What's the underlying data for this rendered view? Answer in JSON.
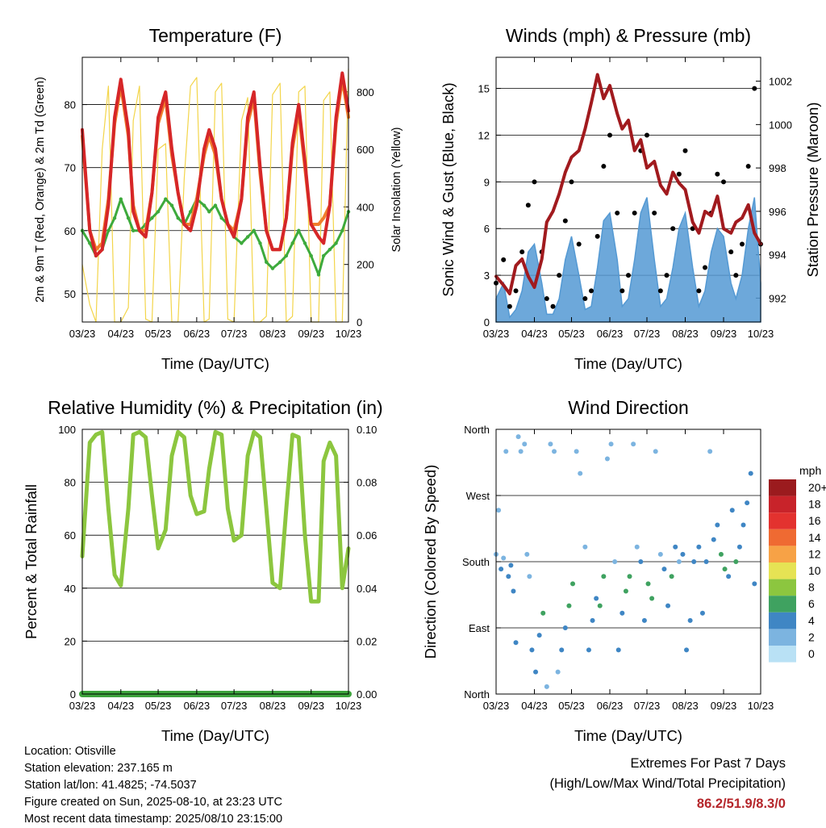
{
  "x_tick_labels": [
    "03/23",
    "04/23",
    "05/23",
    "06/23",
    "07/23",
    "08/23",
    "09/23",
    "10/23"
  ],
  "x_label": "Time (Day/UTC)",
  "colors": {
    "temp_red": "#d62628",
    "temp_orange": "#f07d2c",
    "dewpoint_green": "#3daa3c",
    "solar_yellow": "#f3d54a",
    "wind_blue": "#5499d3",
    "gust_black": "#000000",
    "pressure_maroon": "#a11a1e",
    "rh_green": "#8cc63f",
    "precip_green": "#3da33c",
    "extremes_red": "#b5262b"
  },
  "chart_data": [
    {
      "type": "line",
      "title": "Temperature (F)",
      "xlabel": "Time (Day/UTC)",
      "ylabel": "2m & 9m T (Red, Orange) & 2m Td (Green)",
      "ylabel_right": "Solar Insolation (Yellow)",
      "ylim": [
        45.5,
        87.5
      ],
      "y_ticks": [
        50,
        60,
        70,
        80
      ],
      "ylim_right": [
        0,
        920
      ],
      "y_ticks_right": [
        0,
        200,
        400,
        600,
        800
      ],
      "x": [
        "03/23",
        "03/29",
        "04/03",
        "04/08",
        "04/13",
        "04/18",
        "04/23",
        "04/29",
        "05/03",
        "05/08",
        "05/13",
        "05/18",
        "05/23",
        "05/29",
        "06/03",
        "06/08",
        "06/13",
        "06/18",
        "06/23",
        "06/29",
        "07/03",
        "07/08",
        "07/13",
        "07/18",
        "07/23",
        "07/29",
        "08/03",
        "08/08",
        "08/13",
        "08/18",
        "08/23",
        "08/29",
        "09/03",
        "09/08",
        "09/13",
        "09/18",
        "09/23",
        "09/29",
        "10/03",
        "10/08",
        "10/13",
        "10/18",
        "10/23"
      ],
      "series": [
        {
          "values": [
            76,
            60,
            56,
            57,
            64,
            78,
            84,
            76,
            63,
            60,
            59,
            66,
            78,
            82,
            73,
            66,
            61,
            60,
            64,
            73,
            76,
            73,
            65,
            61,
            59,
            65,
            78,
            82,
            70,
            60,
            57,
            57,
            62,
            74,
            80,
            71,
            61,
            59,
            58,
            64,
            78,
            85,
            79
          ]
        },
        {
          "values": [
            75,
            60,
            57,
            58,
            65,
            77,
            83,
            75,
            64,
            60,
            60,
            66,
            77,
            81,
            72,
            66,
            61,
            61,
            65,
            72,
            75,
            72,
            65,
            61,
            60,
            65,
            77,
            81,
            69,
            60,
            57,
            57,
            62,
            73,
            79,
            70,
            61,
            61,
            62,
            64,
            77,
            84,
            78
          ]
        },
        {
          "values": [
            60,
            58,
            56,
            57,
            60,
            62,
            65,
            62,
            60,
            60,
            61,
            62,
            63,
            65,
            64,
            62,
            61,
            63,
            65,
            64,
            63,
            64,
            62,
            61,
            59,
            58,
            59,
            60,
            58,
            55,
            54,
            55,
            56,
            58,
            60,
            58,
            56,
            53,
            56,
            57,
            58,
            60,
            63
          ]
        },
        {
          "values": [
            200,
            60,
            0,
            600,
            820,
            0,
            0,
            50,
            700,
            820,
            10,
            0,
            600,
            620,
            0,
            0,
            500,
            820,
            850,
            0,
            10,
            800,
            830,
            10,
            0,
            700,
            780,
            0,
            0,
            20,
            790,
            830,
            0,
            20,
            800,
            820,
            0,
            0,
            770,
            800,
            0,
            0,
            880
          ]
        }
      ]
    },
    {
      "type": "line",
      "title": "Winds (mph) & Pressure (mb)",
      "xlabel": "Time (Day/UTC)",
      "ylabel": "Sonic Wind & Gust (Blue, Black)",
      "ylabel_right": "Station Pressure (Maroon)",
      "ylim": [
        0,
        17
      ],
      "y_ticks": [
        0,
        3,
        6,
        9,
        12,
        15
      ],
      "ylim_right": [
        990.9,
        1003.1
      ],
      "y_ticks_right": [
        992,
        994,
        996,
        998,
        1000,
        1002
      ],
      "x": [
        "03/23",
        "03/29",
        "04/03",
        "04/08",
        "04/13",
        "04/18",
        "04/23",
        "04/29",
        "05/03",
        "05/08",
        "05/13",
        "05/18",
        "05/23",
        "05/29",
        "06/03",
        "06/08",
        "06/13",
        "06/18",
        "06/23",
        "06/29",
        "07/03",
        "07/08",
        "07/13",
        "07/18",
        "07/23",
        "07/29",
        "08/03",
        "08/08",
        "08/13",
        "08/18",
        "08/23",
        "08/29",
        "09/03",
        "09/08",
        "09/13",
        "09/18",
        "09/23",
        "09/29",
        "10/03",
        "10/08",
        "10/13",
        "10/18",
        "10/23"
      ],
      "series": [
        {
          "values": [
            1.5,
            2.5,
            0.3,
            0.8,
            2.0,
            4.5,
            5.0,
            2.5,
            0.5,
            0.5,
            1.5,
            4.0,
            5.5,
            3.0,
            0.8,
            1.0,
            3.5,
            6.5,
            7.0,
            4.0,
            1.0,
            1.5,
            4.0,
            7.0,
            8.0,
            4.0,
            1.0,
            1.5,
            3.5,
            6.0,
            7.0,
            3.5,
            1.0,
            2.0,
            4.5,
            6.0,
            5.5,
            2.5,
            1.5,
            3.0,
            6.0,
            8.0,
            2.5
          ]
        },
        {
          "values": [
            2.5,
            4.0,
            1.0,
            2.0,
            4.5,
            7.5,
            9.0,
            4.5,
            1.5,
            1.0,
            3.0,
            6.5,
            9.0,
            5.0,
            1.5,
            2.0,
            5.5,
            10.0,
            12.0,
            7.0,
            2.0,
            3.0,
            7.0,
            11.0,
            12.0,
            7.0,
            2.0,
            3.0,
            6.0,
            9.5,
            11.0,
            6.0,
            2.0,
            3.5,
            7.0,
            9.5,
            9.0,
            4.5,
            3.0,
            5.0,
            10.0,
            15.0,
            5.0
          ]
        },
        {
          "values": [
            993.0,
            992.6,
            992.2,
            993.5,
            993.8,
            993.0,
            992.5,
            993.8,
            995.5,
            996.0,
            996.8,
            997.8,
            998.5,
            998.8,
            999.8,
            1001.0,
            1002.3,
            1001.2,
            1001.8,
            1000.5,
            999.8,
            1000.2,
            998.8,
            999.3,
            998.0,
            998.3,
            997.2,
            996.8,
            997.8,
            997.3,
            997.0,
            995.5,
            995.0,
            996.0,
            995.8,
            996.7,
            995.2,
            995.0,
            995.5,
            995.7,
            996.3,
            995.0,
            994.5
          ]
        }
      ]
    },
    {
      "type": "line",
      "title": "Relative Humidity (%) & Precipitation (in)",
      "xlabel": "Time (Day/UTC)",
      "ylabel": "Percent & Total Rainfall",
      "ylim": [
        0,
        100
      ],
      "y_ticks": [
        0,
        20,
        40,
        60,
        80,
        100
      ],
      "ylim_right": [
        0,
        0.1
      ],
      "y_ticks_right": [
        "0.00",
        "0.02",
        "0.04",
        "0.06",
        "0.08",
        "0.10"
      ],
      "x": [
        "03/23",
        "03/29",
        "04/03",
        "04/08",
        "04/13",
        "04/18",
        "04/23",
        "04/29",
        "05/03",
        "05/08",
        "05/13",
        "05/18",
        "05/23",
        "05/29",
        "06/03",
        "06/08",
        "06/13",
        "06/18",
        "06/23",
        "06/29",
        "07/03",
        "07/08",
        "07/13",
        "07/18",
        "07/23",
        "07/29",
        "08/03",
        "08/08",
        "08/13",
        "08/18",
        "08/23",
        "08/29",
        "09/03",
        "09/08",
        "09/13",
        "09/18",
        "09/23",
        "09/29",
        "10/03",
        "10/08",
        "10/13",
        "10/18",
        "10/23"
      ],
      "series": [
        {
          "values": [
            52,
            95,
            98,
            99,
            70,
            45,
            41,
            70,
            98,
            99,
            97,
            75,
            55,
            62,
            90,
            99,
            97,
            75,
            68,
            69,
            85,
            99,
            98,
            70,
            58,
            60,
            90,
            99,
            97,
            70,
            42,
            40,
            70,
            98,
            97,
            60,
            35,
            35,
            88,
            95,
            90,
            40,
            55
          ]
        },
        {
          "values": [
            0,
            0,
            0,
            0,
            0,
            0,
            0,
            0,
            0,
            0,
            0,
            0,
            0,
            0,
            0,
            0,
            0,
            0,
            0,
            0,
            0,
            0,
            0,
            0,
            0,
            0,
            0,
            0,
            0,
            0,
            0,
            0,
            0,
            0,
            0,
            0,
            0,
            0,
            0,
            0,
            0,
            0,
            0
          ]
        }
      ]
    },
    {
      "type": "scatter",
      "title": "Wind Direction",
      "xlabel": "Time (Day/UTC)",
      "ylabel": "Direction (Colored By Speed)",
      "y_categories": [
        "North",
        "East",
        "South",
        "West",
        "North"
      ],
      "ylim": [
        0,
        360
      ],
      "legend_title": "mph",
      "legend_placement": "right",
      "legend_labels": [
        "20+",
        "18",
        "16",
        "14",
        "12",
        "10",
        "8",
        "6",
        "4",
        "2",
        "0"
      ],
      "legend_colors": [
        "#9b1b1e",
        "#c8232a",
        "#e3322f",
        "#ef6a32",
        "#f7a246",
        "#e6e354",
        "#8cc63f",
        "#3fa260",
        "#3f86c4",
        "#7cb4e0",
        "#b9e1f5"
      ],
      "points": [
        {
          "x": "03/23",
          "dir": 190,
          "speed": 1
        },
        {
          "x": "03/25",
          "dir": 250,
          "speed": 1
        },
        {
          "x": "03/27",
          "dir": 170,
          "speed": 3
        },
        {
          "x": "03/29",
          "dir": 185,
          "speed": 2
        },
        {
          "x": "03/31",
          "dir": 330,
          "speed": 1
        },
        {
          "x": "04/02",
          "dir": 160,
          "speed": 3
        },
        {
          "x": "04/04",
          "dir": 175,
          "speed": 3
        },
        {
          "x": "04/06",
          "dir": 140,
          "speed": 4
        },
        {
          "x": "04/08",
          "dir": 70,
          "speed": 3
        },
        {
          "x": "04/10",
          "dir": 350,
          "speed": 1
        },
        {
          "x": "04/12",
          "dir": 330,
          "speed": 1
        },
        {
          "x": "04/15",
          "dir": 340,
          "speed": 1
        },
        {
          "x": "04/17",
          "dir": 190,
          "speed": 2
        },
        {
          "x": "04/19",
          "dir": 160,
          "speed": 1
        },
        {
          "x": "04/21",
          "dir": 60,
          "speed": 3
        },
        {
          "x": "04/24",
          "dir": 30,
          "speed": 3
        },
        {
          "x": "04/27",
          "dir": 80,
          "speed": 4
        },
        {
          "x": "04/30",
          "dir": 110,
          "speed": 5
        },
        {
          "x": "05/03",
          "dir": 10,
          "speed": 1
        },
        {
          "x": "05/06",
          "dir": 340,
          "speed": 1
        },
        {
          "x": "05/09",
          "dir": 330,
          "speed": 1
        },
        {
          "x": "05/12",
          "dir": 30,
          "speed": 1
        },
        {
          "x": "05/15",
          "dir": 60,
          "speed": 3
        },
        {
          "x": "05/18",
          "dir": 90,
          "speed": 4
        },
        {
          "x": "05/21",
          "dir": 120,
          "speed": 6
        },
        {
          "x": "05/24",
          "dir": 150,
          "speed": 6
        },
        {
          "x": "05/27",
          "dir": 330,
          "speed": 1
        },
        {
          "x": "05/30",
          "dir": 300,
          "speed": 1
        },
        {
          "x": "06/03",
          "dir": 200,
          "speed": 2
        },
        {
          "x": "06/06",
          "dir": 60,
          "speed": 3
        },
        {
          "x": "06/09",
          "dir": 100,
          "speed": 3
        },
        {
          "x": "06/12",
          "dir": 130,
          "speed": 4
        },
        {
          "x": "06/15",
          "dir": 120,
          "speed": 6
        },
        {
          "x": "06/18",
          "dir": 160,
          "speed": 6
        },
        {
          "x": "06/21",
          "dir": 320,
          "speed": 1
        },
        {
          "x": "06/24",
          "dir": 340,
          "speed": 1
        },
        {
          "x": "06/27",
          "dir": 180,
          "speed": 2
        },
        {
          "x": "06/30",
          "dir": 60,
          "speed": 3
        },
        {
          "x": "07/03",
          "dir": 110,
          "speed": 4
        },
        {
          "x": "07/06",
          "dir": 140,
          "speed": 6
        },
        {
          "x": "07/09",
          "dir": 160,
          "speed": 6
        },
        {
          "x": "07/12",
          "dir": 340,
          "speed": 1
        },
        {
          "x": "07/15",
          "dir": 200,
          "speed": 2
        },
        {
          "x": "07/18",
          "dir": 180,
          "speed": 3
        },
        {
          "x": "07/21",
          "dir": 100,
          "speed": 4
        },
        {
          "x": "07/24",
          "dir": 150,
          "speed": 5
        },
        {
          "x": "07/27",
          "dir": 130,
          "speed": 6
        },
        {
          "x": "07/30",
          "dir": 330,
          "speed": 1
        },
        {
          "x": "08/03",
          "dir": 190,
          "speed": 2
        },
        {
          "x": "08/06",
          "dir": 170,
          "speed": 3
        },
        {
          "x": "08/09",
          "dir": 120,
          "speed": 4
        },
        {
          "x": "08/12",
          "dir": 160,
          "speed": 6
        },
        {
          "x": "08/15",
          "dir": 200,
          "speed": 3
        },
        {
          "x": "08/18",
          "dir": 180,
          "speed": 2
        },
        {
          "x": "08/21",
          "dir": 190,
          "speed": 3
        },
        {
          "x": "08/24",
          "dir": 60,
          "speed": 3
        },
        {
          "x": "08/27",
          "dir": 100,
          "speed": 4
        },
        {
          "x": "08/30",
          "dir": 180,
          "speed": 4
        },
        {
          "x": "09/03",
          "dir": 200,
          "speed": 4
        },
        {
          "x": "09/06",
          "dir": 110,
          "speed": 4
        },
        {
          "x": "09/09",
          "dir": 180,
          "speed": 4
        },
        {
          "x": "09/12",
          "dir": 330,
          "speed": 1
        },
        {
          "x": "09/15",
          "dir": 210,
          "speed": 4
        },
        {
          "x": "09/18",
          "dir": 230,
          "speed": 4
        },
        {
          "x": "09/21",
          "dir": 190,
          "speed": 5
        },
        {
          "x": "09/24",
          "dir": 170,
          "speed": 6
        },
        {
          "x": "09/27",
          "dir": 160,
          "speed": 4
        },
        {
          "x": "09/30",
          "dir": 250,
          "speed": 4
        },
        {
          "x": "10/03",
          "dir": 180,
          "speed": 6
        },
        {
          "x": "10/06",
          "dir": 200,
          "speed": 4
        },
        {
          "x": "10/09",
          "dir": 230,
          "speed": 4
        },
        {
          "x": "10/12",
          "dir": 260,
          "speed": 4
        },
        {
          "x": "10/15",
          "dir": 300,
          "speed": 4
        },
        {
          "x": "10/18",
          "dir": 150,
          "speed": 4
        }
      ]
    }
  ],
  "footer": {
    "location": "Location: Otisville",
    "elevation": "Station elevation: 237.165 m",
    "latlon": "Station lat/lon: 41.4825; -74.5037",
    "created": "Figure created on Sun, 2025-08-10, at 23:23 UTC",
    "latest": "Most recent data timestamp: 2025/08/10 23:15:00",
    "extremes_title": "Extremes For Past 7 Days",
    "extremes_subtitle": "(High/Low/Max Wind/Total Precipitation)",
    "extremes_values": "86.2/51.9/8.3/0"
  }
}
